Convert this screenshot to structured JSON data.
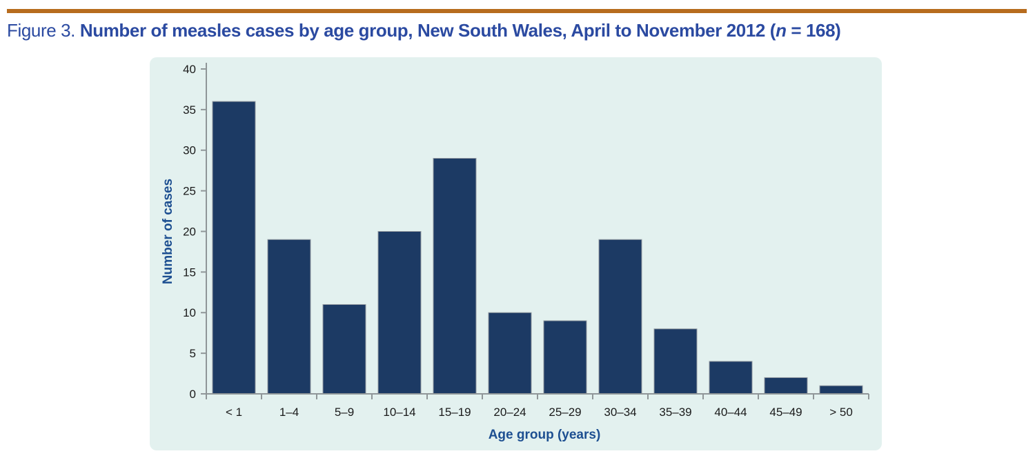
{
  "figure": {
    "label": "Figure 3.",
    "title_prefix": "Number of measles cases by age group, New South Wales, April to November 2012 (",
    "n_symbol": "n",
    "title_suffix": " = 168)"
  },
  "chart_data": {
    "type": "bar",
    "title": "Figure 3. Number of measles cases by age group, New South Wales, April to November 2012 (n = 168)",
    "categories": [
      "< 1",
      "1–4",
      "5–9",
      "10–14",
      "15–19",
      "20–24",
      "25–29",
      "30–34",
      "35–39",
      "40–44",
      "45–49",
      "> 50"
    ],
    "values": [
      36,
      19,
      11,
      20,
      29,
      10,
      9,
      19,
      8,
      4,
      2,
      1
    ],
    "total_n": 168,
    "xlabel": "Age group (years)",
    "ylabel": "Number of cases",
    "ylim": [
      0,
      40
    ],
    "ytick_step": 5,
    "grid": false,
    "legend": "none",
    "colors": {
      "bar_fill": "#1c3a64",
      "bar_outline": "#949ba2",
      "panel_background": "#e3f1ef",
      "axis_line": "#8f9698",
      "tick_label": "#1a1a1a",
      "axis_title": "#1d4f91",
      "figure_title": "#2b4aa1",
      "accent_rule": "#b76c1e"
    }
  }
}
